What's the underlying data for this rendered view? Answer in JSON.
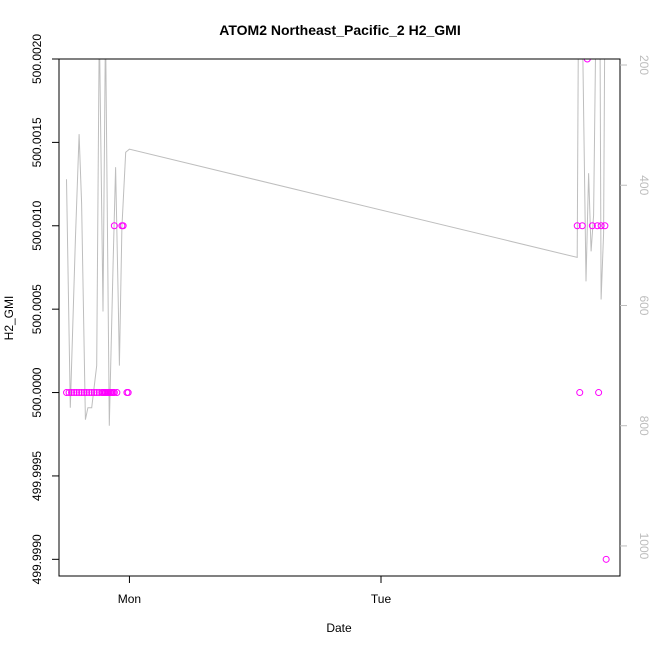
{
  "chart_data": {
    "type": "scatter",
    "title": "ATOM2 Northeast_Pacific_2 H2_GMI",
    "xlabel": "Date",
    "ylabel": "H2_GMI",
    "xlim": [
      -0.28,
      1.95
    ],
    "ylim": [
      499.9989,
      500.002
    ],
    "y2lim": [
      1050,
      190
    ],
    "x_ticks": [
      {
        "value": 0,
        "label": "Mon"
      },
      {
        "value": 1,
        "label": "Tue"
      }
    ],
    "y_ticks": [
      {
        "value": 499.999,
        "label": "499.9990"
      },
      {
        "value": 499.9995,
        "label": "499.9995"
      },
      {
        "value": 500.0,
        "label": "500.0000"
      },
      {
        "value": 500.0005,
        "label": "500.0005"
      },
      {
        "value": 500.001,
        "label": "500.0010"
      },
      {
        "value": 500.0015,
        "label": "500.0015"
      },
      {
        "value": 500.002,
        "label": "500.0020"
      }
    ],
    "y2_ticks": [
      {
        "value": 200,
        "label": "200"
      },
      {
        "value": 400,
        "label": "400"
      },
      {
        "value": 600,
        "label": "600"
      },
      {
        "value": 800,
        "label": "800"
      },
      {
        "value": 1000,
        "label": "1000"
      }
    ],
    "series": [
      {
        "color": "#ff00ff",
        "marker": "circle",
        "axis": "left",
        "points": [
          [
            -0.25,
            500.0
          ],
          [
            -0.24,
            500.0
          ],
          [
            -0.23,
            500.0
          ],
          [
            -0.22,
            500.0
          ],
          [
            -0.21,
            500.0
          ],
          [
            -0.2,
            500.0
          ],
          [
            -0.19,
            500.0
          ],
          [
            -0.18,
            500.0
          ],
          [
            -0.17,
            500.0
          ],
          [
            -0.16,
            500.0
          ],
          [
            -0.15,
            500.0
          ],
          [
            -0.14,
            500.0
          ],
          [
            -0.13,
            500.0
          ],
          [
            -0.12,
            500.0
          ],
          [
            -0.11,
            500.0
          ],
          [
            -0.105,
            500.0
          ],
          [
            -0.1,
            500.0
          ],
          [
            -0.095,
            500.0
          ],
          [
            -0.09,
            500.0
          ],
          [
            -0.085,
            500.0
          ],
          [
            -0.08,
            500.0
          ],
          [
            -0.075,
            500.0
          ],
          [
            -0.07,
            500.0
          ],
          [
            -0.065,
            500.0
          ],
          [
            -0.06,
            500.0
          ],
          [
            -0.05,
            500.0
          ],
          [
            -0.06,
            500.001
          ],
          [
            -0.03,
            500.001
          ],
          [
            -0.025,
            500.001
          ],
          [
            -0.01,
            500.0
          ],
          [
            -0.005,
            500.0
          ],
          [
            1.78,
            500.001
          ],
          [
            1.79,
            500.0
          ],
          [
            1.8,
            500.001
          ],
          [
            1.82,
            500.002
          ],
          [
            1.84,
            500.001
          ],
          [
            1.86,
            500.001
          ],
          [
            1.865,
            500.0
          ],
          [
            1.875,
            500.001
          ],
          [
            1.89,
            500.001
          ],
          [
            1.895,
            499.999
          ]
        ]
      },
      {
        "color": "#bebebe",
        "marker": "line",
        "axis": "right",
        "points": [
          [
            -0.25,
            390
          ],
          [
            -0.235,
            770
          ],
          [
            -0.215,
            490
          ],
          [
            -0.2,
            315
          ],
          [
            -0.19,
            430
          ],
          [
            -0.175,
            790
          ],
          [
            -0.165,
            770
          ],
          [
            -0.15,
            770
          ],
          [
            -0.13,
            700
          ],
          [
            -0.12,
            130
          ],
          [
            -0.105,
            610
          ],
          [
            -0.095,
            130
          ],
          [
            -0.08,
            800
          ],
          [
            -0.065,
            530
          ],
          [
            -0.055,
            370
          ],
          [
            -0.045,
            580
          ],
          [
            -0.04,
            700
          ],
          [
            -0.03,
            470
          ],
          [
            -0.015,
            345
          ],
          [
            0.0,
            340
          ],
          [
            1.78,
            520
          ],
          [
            1.785,
            100
          ],
          [
            1.8,
            120
          ],
          [
            1.815,
            560
          ],
          [
            1.825,
            380
          ],
          [
            1.835,
            510
          ],
          [
            1.845,
            450
          ],
          [
            1.855,
            100
          ],
          [
            1.87,
            100
          ],
          [
            1.875,
            590
          ],
          [
            1.885,
            480
          ],
          [
            1.89,
            100
          ]
        ]
      }
    ]
  }
}
